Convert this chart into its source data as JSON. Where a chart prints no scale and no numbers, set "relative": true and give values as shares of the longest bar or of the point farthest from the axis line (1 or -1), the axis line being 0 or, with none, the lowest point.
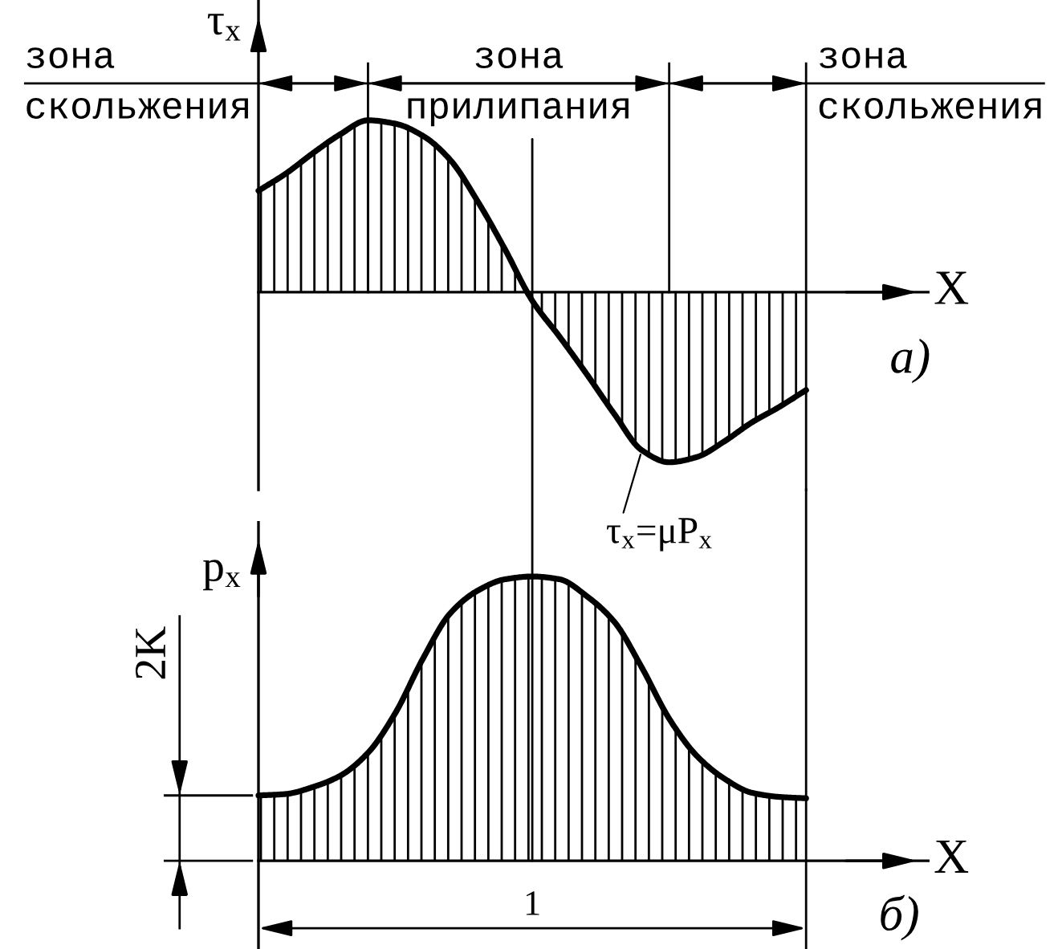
{
  "chart_data": [
    {
      "type": "area",
      "relative": true,
      "ylabel": "τ$_{x}$",
      "xlabel": "X",
      "color": "#000000",
      "categories": [
        null,
        null,
        null,
        null,
        null,
        null,
        null,
        null,
        null,
        null,
        null,
        null,
        null,
        null,
        null,
        null,
        null,
        null,
        null,
        null,
        null
      ],
      "values": [
        0.59,
        0.69,
        0.81,
        0.92,
        1.0,
        0.98,
        0.91,
        0.77,
        0.53,
        0.25,
        -0.05,
        -0.26,
        -0.48,
        -0.71,
        -0.92,
        -0.99,
        -0.96,
        -0.87,
        -0.76,
        -0.67,
        -0.57
      ],
      "annotations": [
        "зона\nскольжения",
        "зона\nприлипания",
        "зона\nскольжения",
        "а)",
        "τ$_{x}$=μP$_{x}$"
      ]
    },
    {
      "type": "area",
      "relative": true,
      "ylabel": "p$_{x}$",
      "xlabel": "X",
      "color": "#000000",
      "categories": [
        null,
        null,
        null,
        null,
        null,
        null,
        null,
        null,
        null,
        null,
        null,
        null,
        null,
        null,
        null,
        null,
        null,
        null,
        null,
        null,
        null
      ],
      "values": [
        0.23,
        0.235,
        0.26,
        0.3,
        0.38,
        0.52,
        0.71,
        0.87,
        0.95,
        0.99,
        1.0,
        0.99,
        0.93,
        0.84,
        0.68,
        0.5,
        0.37,
        0.29,
        0.24,
        0.225,
        0.22
      ],
      "annotations": [
        "1",
        "2K",
        "б)"
      ]
    }
  ]
}
